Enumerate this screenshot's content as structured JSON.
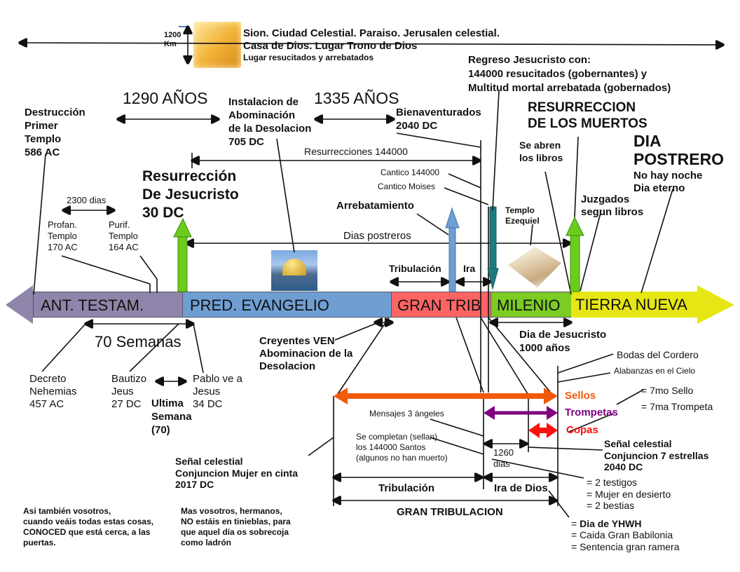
{
  "heaven": {
    "scale": "1200\nKm",
    "line1": "Sion. Ciudad Celestial. Paraiso. Jerusalen celestial.",
    "line2": "Casa de Dios. Lugar Trono de Dios",
    "line3": "Lugar resucitados y arrebatados"
  },
  "regreso": "Regreso Jesucristo con:\n144000 resucitados (gobernantes) y\nMultitud mortal arrebatada (gobernados)",
  "years_1290": "1290 AÑOS",
  "years_1335": "1335 AÑOS",
  "destruccion": "Destrucción\nPrimer\nTemplo\n586 AC",
  "instalacion": "Instalacion de\nAbominación\nde la Desolacion\n705 DC",
  "bienaventurados": "Bienaventurados\n2040 DC",
  "resurreccion_muertos": "RESURRECCION\nDE LOS MUERTOS",
  "dia_postrero": "DIA\nPOSTRERO",
  "dia_postrero_sub": "No hay noche\nDia eterno",
  "resurrecciones_144000": "Resurrecciones 144000",
  "se_abren_libros": "Se abren\nlos libros",
  "resurreccion_jesucristo": "Resurrección\nDe Jesucristo\n30 DC",
  "cantico_144000": "Cantico 144000",
  "cantico_moises": "Cantico Moises",
  "dias_2300": "2300 dias",
  "arrebatamiento": "Arrebatamiento",
  "juzgados": "Juzgados\nsegun libros",
  "templo_ezequiel": "Templo\nEzequiel",
  "profan": "Profan.\nTemplo\n170 AC",
  "purif": "Purif.\nTemplo\n164 AC",
  "dias_postreros": "Dias postreros",
  "tribulacion_top": "Tribulación",
  "ira_top": "Ira",
  "timeline": {
    "segments": [
      {
        "label": "ANT. TESTAM.",
        "color": "#8f84a9"
      },
      {
        "label": "PRED. EVANGELIO",
        "color": "#6f9ed3"
      },
      {
        "label": "GRAN TRIB",
        "color": "#ff6464"
      },
      {
        "label": "MILENIO",
        "color": "#7ccc24"
      },
      {
        "label": "TIERRA NUEVA",
        "color": "#e6e614"
      }
    ]
  },
  "semanas_70": "70 Semanas",
  "dia_jesucristo": "Dia de Jesucristo\n1000 años",
  "creyentes": "Creyentes VEN\nAbominacion de la\nDesolacion",
  "bodas": "Bodas del Cordero",
  "alabanzas": "Alabanzas en el Cielo",
  "decreto": "Decreto\nNehemias\n457 AC",
  "bautizo": "Bautizo\nJeus\n27 DC",
  "pablo": "Pablo ve a\nJesus\n34 DC",
  "ultima_semana": "Ultima\nSemana\n(70)",
  "sellos": {
    "label": "Sellos",
    "color": "#f05a0a"
  },
  "trompetas": {
    "label": "Trompetas",
    "color": "#800080"
  },
  "copas": {
    "label": "Copas",
    "color": "#ff1010"
  },
  "septimo_sello": "= 7mo Sello",
  "septima_trompeta": "= 7ma Trompeta",
  "mensajes": "Mensajes 3 ángeles",
  "se_completan": "Se completan (sellan)\nlos 144000 Santos\n(algunos no han muerto)",
  "senal_7": "Señal celestial\nConjuncion 7 estrellas\n2040 DC",
  "dias_1260": "1260\ndias",
  "senal_mujer": "Señal celestial\nConjuncion Mujer en cinta\n2017 DC",
  "testigos": "= 2 testigos\n= Mujer en desierto\n= 2 bestias",
  "tribulacion_bottom": "Tribulación",
  "ira_de_dios": "Ira de Dios",
  "gran_tribulacion": "GRAN TRIBULACION",
  "asi_tambien": "Asi también vosotros,\ncuando veáis todas estas cosas,\nCONOCED que está cerca, a las\npuertas.",
  "mas_vosotros": "Mas vosotros, hermanos,\nNO estáis en tinieblas, para\nque aquel día os sobrecoja\ncomo ladrón",
  "dia_yhwh_prefix": "= ",
  "dia_yhwh": "Dia de YHWH",
  "babilonia": "= Caida Gran Babilonia\n= Sentencia gran ramera"
}
